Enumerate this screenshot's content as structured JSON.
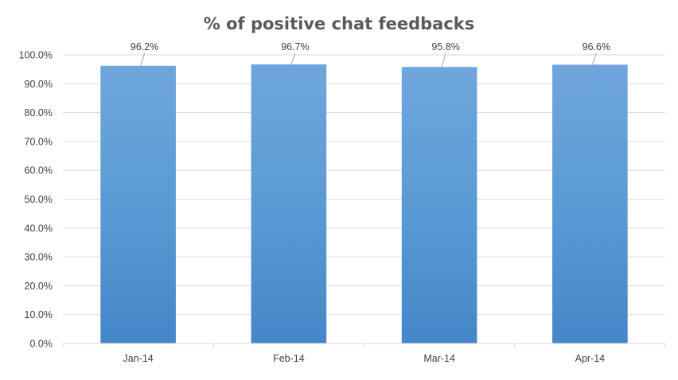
{
  "chart_data": {
    "type": "bar",
    "title": "% of positive chat feedbacks",
    "xlabel": "",
    "ylabel": "",
    "categories": [
      "Jan-14",
      "Feb-14",
      "Mar-14",
      "Apr-14"
    ],
    "values": [
      96.2,
      96.7,
      95.8,
      96.6
    ],
    "data_labels": [
      "96.2%",
      "96.7%",
      "95.8%",
      "96.6%"
    ],
    "ylim": [
      0,
      100
    ],
    "yticks": [
      "0.0%",
      "10.0%",
      "20.0%",
      "30.0%",
      "40.0%",
      "50.0%",
      "60.0%",
      "70.0%",
      "80.0%",
      "90.0%",
      "100.0%"
    ],
    "grid": true,
    "legend": "none",
    "colors": {
      "bar_top": "#6fa6dc",
      "bar_mid": "#5b9bd5",
      "bar_bottom": "#4586c8",
      "grid": "#d9d9d9",
      "text": "#404040",
      "title": "#595959"
    }
  }
}
